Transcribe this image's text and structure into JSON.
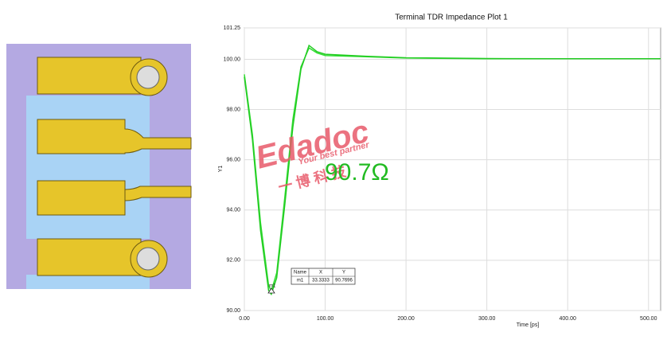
{
  "chart_data": {
    "type": "line",
    "title": "Terminal TDR Impedance Plot 1",
    "x_label": "Time [ps]",
    "y_label": "Y1",
    "annotation": "90.7Ω",
    "x": [
      0,
      10,
      20,
      30,
      33.3,
      40,
      50,
      60,
      70,
      80,
      90,
      100,
      150,
      200,
      300,
      400,
      515
    ],
    "series": [
      {
        "color": "#33dd33",
        "values": [
          99.4,
          97.0,
          93.5,
          91.0,
          90.77,
          91.5,
          94.5,
          97.6,
          99.7,
          100.45,
          100.25,
          100.15,
          100.1,
          100.05,
          100.02,
          100.02,
          100.02
        ]
      },
      {
        "color": "#22cc22",
        "values": [
          99.3,
          96.8,
          93.2,
          90.8,
          90.65,
          91.3,
          94.2,
          97.3,
          99.6,
          100.55,
          100.3,
          100.2,
          100.12,
          100.06,
          100.03,
          100.02,
          100.02
        ]
      }
    ],
    "xlim": [
      0,
      515
    ],
    "ylim": [
      90,
      101.25
    ],
    "xticks": [
      {
        "value": 0,
        "label": "0.00"
      },
      {
        "value": 100,
        "label": "100.00"
      },
      {
        "value": 200,
        "label": "200.00"
      },
      {
        "value": 300,
        "label": "300.00"
      },
      {
        "value": 400,
        "label": "400.00"
      },
      {
        "value": 500,
        "label": "500.00"
      }
    ],
    "yticks": [
      {
        "value": 90,
        "label": "90.00"
      },
      {
        "value": 92,
        "label": "92.00"
      },
      {
        "value": 94,
        "label": "94.00"
      },
      {
        "value": 96,
        "label": "96.00"
      },
      {
        "value": 98,
        "label": "98.00"
      },
      {
        "value": 100,
        "label": "100.00"
      },
      101.25
    ],
    "grid": true
  },
  "marker_table": {
    "header": [
      "Name",
      "X",
      "Y"
    ],
    "rows": [
      [
        "m1",
        33.3333,
        90.7696
      ]
    ]
  },
  "watermark": {
    "brand": "Edadoc",
    "slogan": "Your best partner",
    "chinese": "一 博 科 技"
  }
}
